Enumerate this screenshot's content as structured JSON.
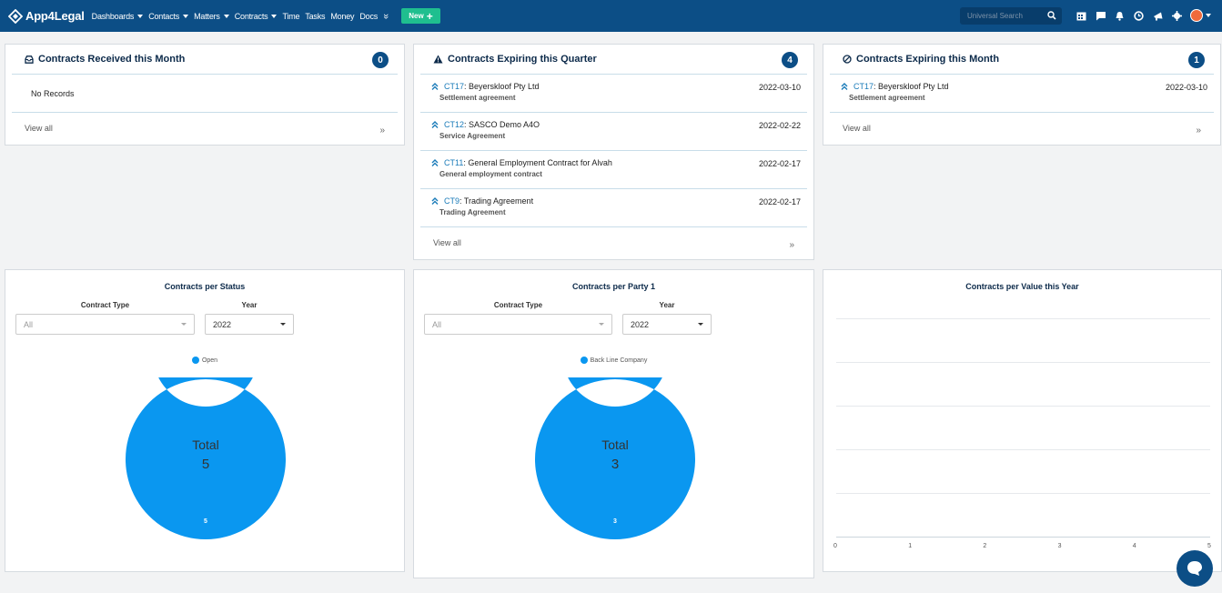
{
  "navbar": {
    "brand": "App4Legal",
    "menu": [
      {
        "label": "Dashboards",
        "caret": true
      },
      {
        "label": "Contacts",
        "caret": true
      },
      {
        "label": "Matters",
        "caret": true
      },
      {
        "label": "Contracts",
        "caret": true
      },
      {
        "label": "Time",
        "caret": false
      },
      {
        "label": "Tasks",
        "caret": false
      },
      {
        "label": "Money",
        "caret": false
      },
      {
        "label": "Docs",
        "caret": false
      }
    ],
    "more_glyph": "»",
    "new_button": "New",
    "search_placeholder": "Universal Search",
    "icons": [
      "calendar-icon",
      "chat-icon",
      "bell-icon",
      "clock-icon",
      "megaphone-icon",
      "gear-icon"
    ],
    "colors": {
      "bar": "#0c4e86",
      "new_button": "#1fbf8f"
    }
  },
  "cards": {
    "received": {
      "title": "Contracts Received this Month",
      "count": "0",
      "empty_text": "No Records",
      "view_all": "View all",
      "more_glyph": "»"
    },
    "expiring_quarter": {
      "title": "Contracts Expiring this Quarter",
      "count": "4",
      "items": [
        {
          "code": "CT17",
          "name": ": Beyerskloof Pty Ltd",
          "type": "Settlement agreement",
          "date": "2022-03-10"
        },
        {
          "code": "CT12",
          "name": ": SASCO Demo A4O",
          "type": "Service Agreement",
          "date": "2022-02-22"
        },
        {
          "code": "CT11",
          "name": ": General Employment Contract for Alvah",
          "type": "General employment contract",
          "date": "2022-02-17"
        },
        {
          "code": "CT9",
          "name": ": Trading Agreement",
          "type": "Trading Agreement",
          "date": "2022-02-17"
        }
      ],
      "view_all": "View all",
      "more_glyph": "»"
    },
    "expiring_month": {
      "title": "Contracts Expiring this Month",
      "count": "1",
      "items": [
        {
          "code": "CT17",
          "name": ": Beyerskloof Pty Ltd",
          "type": "Settlement agreement",
          "date": "2022-03-10"
        }
      ],
      "view_all": "View all",
      "more_glyph": "»"
    }
  },
  "charts_panels": {
    "status": {
      "title": "Contracts per Status",
      "type_label": "Contract Type",
      "type_value": "All",
      "year_label": "Year",
      "year_value": "2022",
      "center_label": "Total",
      "center_value": "5",
      "slice_label": "5"
    },
    "party": {
      "title": "Contracts per Party 1",
      "type_label": "Contract Type",
      "type_value": "All",
      "year_label": "Year",
      "year_value": "2022",
      "center_label": "Total",
      "center_value": "3",
      "slice_label": "3"
    },
    "value": {
      "title": "Contracts per Value this Year"
    }
  },
  "chart_data": [
    {
      "type": "pie",
      "title": "Contracts per Status",
      "categories": [
        "Open"
      ],
      "values": [
        5
      ],
      "colors": [
        "#0a97f0"
      ],
      "legend": "top"
    },
    {
      "type": "pie",
      "title": "Contracts per Party 1",
      "categories": [
        "Back Line Company"
      ],
      "values": [
        3
      ],
      "colors": [
        "#0a97f0"
      ],
      "legend": "top"
    },
    {
      "type": "bar",
      "title": "Contracts per Value this Year",
      "categories": [],
      "values": [],
      "xticks": [
        "0",
        "1",
        "2",
        "3",
        "4",
        "5"
      ],
      "xlim": [
        0,
        5
      ],
      "grid": true
    }
  ]
}
